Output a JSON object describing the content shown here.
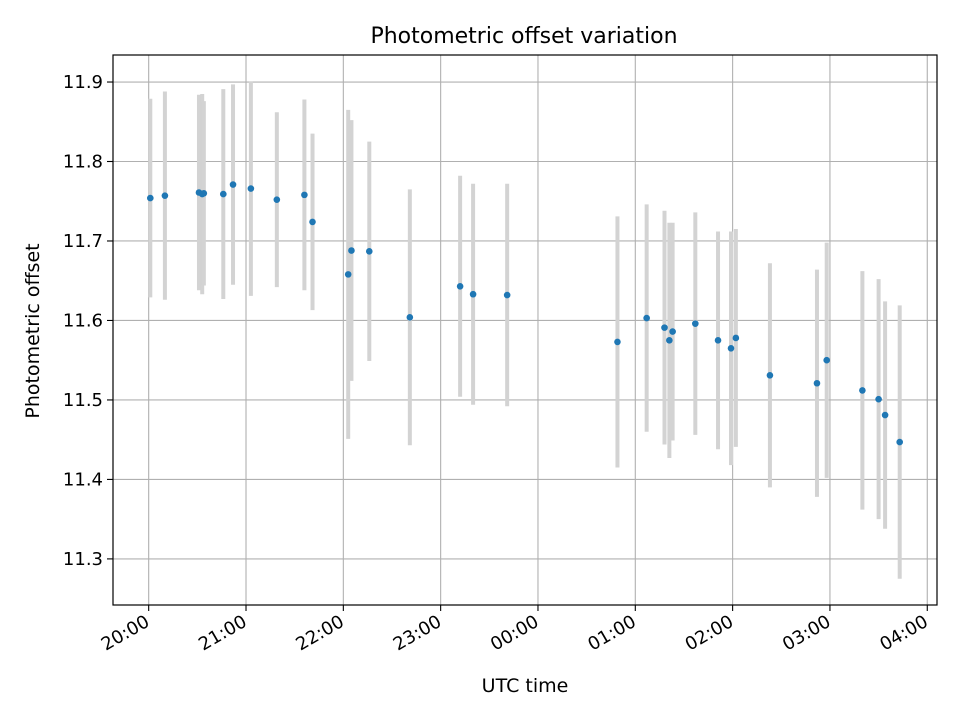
{
  "chart_data": {
    "type": "scatter",
    "title": "Photometric offset variation",
    "xlabel": "UTC time",
    "ylabel": "Photometric offset",
    "xlim": [
      "19:38",
      "04:06"
    ],
    "ylim": [
      11.242,
      11.934
    ],
    "x_ticks": [
      "20:00",
      "21:00",
      "22:00",
      "23:00",
      "00:00",
      "01:00",
      "02:00",
      "03:00",
      "04:00"
    ],
    "y_ticks": [
      "11.3",
      "11.4",
      "11.5",
      "11.6",
      "11.7",
      "11.8",
      "11.9"
    ],
    "grid": true,
    "series": [
      {
        "marker_color": "#1f77b4",
        "errorbar_color": "#d3d3d3",
        "points": [
          {
            "x": "20:01",
            "y": 11.754,
            "yerr": 0.125
          },
          {
            "x": "20:10",
            "y": 11.757,
            "yerr": 0.131
          },
          {
            "x": "20:31",
            "y": 11.761,
            "yerr": 0.123
          },
          {
            "x": "20:33",
            "y": 11.759,
            "yerr": 0.126
          },
          {
            "x": "20:34",
            "y": 11.76,
            "yerr": 0.116
          },
          {
            "x": "20:46",
            "y": 11.759,
            "yerr": 0.132
          },
          {
            "x": "20:52",
            "y": 11.771,
            "yerr": 0.126
          },
          {
            "x": "21:03",
            "y": 11.766,
            "yerr": 0.135
          },
          {
            "x": "21:19",
            "y": 11.752,
            "yerr": 0.11
          },
          {
            "x": "21:36",
            "y": 11.758,
            "yerr": 0.12
          },
          {
            "x": "21:41",
            "y": 11.724,
            "yerr": 0.111
          },
          {
            "x": "22:03",
            "y": 11.658,
            "yerr": 0.207
          },
          {
            "x": "22:05",
            "y": 11.688,
            "yerr": 0.164
          },
          {
            "x": "22:16",
            "y": 11.687,
            "yerr": 0.138
          },
          {
            "x": "22:41",
            "y": 11.604,
            "yerr": 0.161
          },
          {
            "x": "23:12",
            "y": 11.643,
            "yerr": 0.139
          },
          {
            "x": "23:20",
            "y": 11.633,
            "yerr": 0.139
          },
          {
            "x": "23:41",
            "y": 11.632,
            "yerr": 0.14
          },
          {
            "x": "00:49",
            "y": 11.573,
            "yerr": 0.158
          },
          {
            "x": "01:07",
            "y": 11.603,
            "yerr": 0.143
          },
          {
            "x": "01:18",
            "y": 11.591,
            "yerr": 0.147
          },
          {
            "x": "01:21",
            "y": 11.575,
            "yerr": 0.148
          },
          {
            "x": "01:23",
            "y": 11.586,
            "yerr": 0.137
          },
          {
            "x": "01:37",
            "y": 11.596,
            "yerr": 0.14
          },
          {
            "x": "01:51",
            "y": 11.575,
            "yerr": 0.137
          },
          {
            "x": "01:59",
            "y": 11.565,
            "yerr": 0.147
          },
          {
            "x": "02:02",
            "y": 11.578,
            "yerr": 0.137
          },
          {
            "x": "02:23",
            "y": 11.531,
            "yerr": 0.141
          },
          {
            "x": "02:52",
            "y": 11.521,
            "yerr": 0.143
          },
          {
            "x": "02:58",
            "y": 11.55,
            "yerr": 0.148
          },
          {
            "x": "03:20",
            "y": 11.512,
            "yerr": 0.15
          },
          {
            "x": "03:30",
            "y": 11.501,
            "yerr": 0.151
          },
          {
            "x": "03:34",
            "y": 11.481,
            "yerr": 0.143
          },
          {
            "x": "03:43",
            "y": 11.447,
            "yerr": 0.172
          }
        ]
      }
    ]
  }
}
